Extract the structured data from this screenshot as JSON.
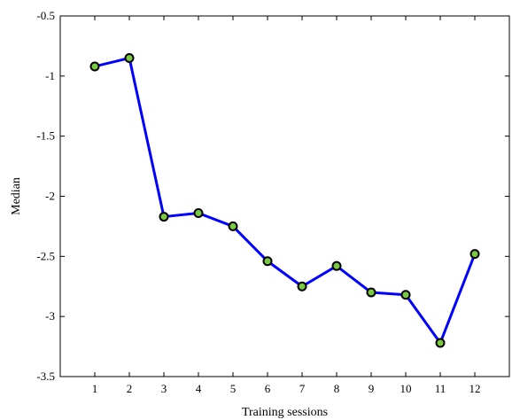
{
  "chart_data": {
    "type": "line",
    "title": "",
    "xlabel": "Training sessions",
    "ylabel": "Median",
    "x": [
      1,
      2,
      3,
      4,
      5,
      6,
      7,
      8,
      9,
      10,
      11,
      12
    ],
    "xticks": [
      "1",
      "2",
      "3",
      "4",
      "5",
      "6",
      "7",
      "8",
      "9",
      "10",
      "11",
      "12"
    ],
    "xlim": [
      0,
      13
    ],
    "ylim": [
      -3.5,
      -0.5
    ],
    "yticks": [
      -3.5,
      -3,
      -2.5,
      -2,
      -1.5,
      -1,
      -0.5
    ],
    "ytick_labels": [
      "-3.5",
      "-3",
      "-2.5",
      "-2",
      "-1.5",
      "-1",
      "-0.5"
    ],
    "grid": false,
    "series": [
      {
        "values": [
          -0.92,
          -0.85,
          -2.17,
          -2.14,
          -2.25,
          -2.54,
          -2.75,
          -2.58,
          -2.8,
          -2.82,
          -3.22,
          -2.48
        ],
        "line_color": "#0000ff",
        "marker_fill": "#7ac943",
        "marker_edge": "#000000"
      }
    ]
  }
}
